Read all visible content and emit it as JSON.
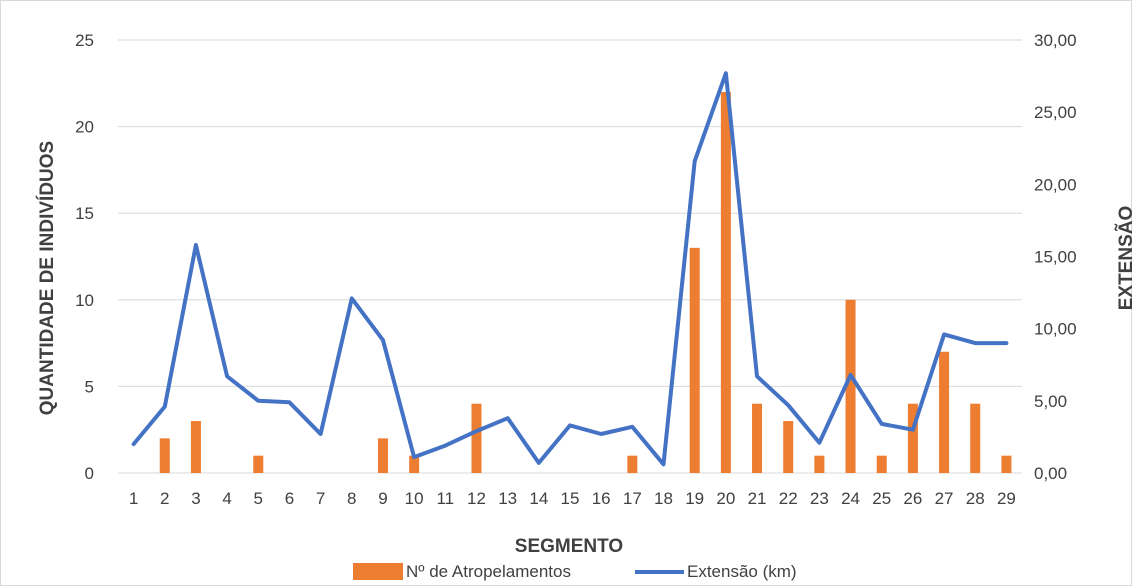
{
  "chart_data": {
    "type": "bar+line",
    "title": "",
    "xlabel": "SEGMENTO",
    "ylabel_left": "QUANTIDADE DE INDIVÍDUOS",
    "ylabel_right": "EXTENSÃO",
    "categories": [
      "1",
      "2",
      "3",
      "4",
      "5",
      "6",
      "7",
      "8",
      "9",
      "10",
      "11",
      "12",
      "13",
      "14",
      "15",
      "16",
      "17",
      "18",
      "19",
      "20",
      "21",
      "22",
      "23",
      "24",
      "25",
      "26",
      "27",
      "28",
      "29"
    ],
    "y_left_ticks": [
      "0",
      "5",
      "10",
      "15",
      "20",
      "25"
    ],
    "y_left_lim": [
      0,
      25
    ],
    "y_right_ticks": [
      "0,00",
      "5,00",
      "10,00",
      "15,00",
      "20,00",
      "25,00",
      "30,00"
    ],
    "y_right_lim": [
      0,
      30
    ],
    "grid": true,
    "legend_position": "bottom",
    "series": [
      {
        "name": "Nº de Atropelamentos",
        "type": "bar",
        "axis": "left",
        "color": "#ED7D31",
        "values": [
          0,
          2,
          3,
          0,
          1,
          0,
          0,
          0,
          2,
          1,
          0,
          4,
          0,
          0,
          0,
          0,
          1,
          0,
          13,
          22,
          4,
          3,
          1,
          10,
          1,
          4,
          7,
          4,
          1
        ]
      },
      {
        "name": "Extensão (km)",
        "type": "line",
        "axis": "right",
        "color": "#4472C4",
        "values": [
          2.0,
          4.6,
          15.8,
          6.7,
          5.0,
          4.9,
          2.7,
          12.1,
          9.2,
          1.1,
          1.9,
          2.9,
          3.8,
          0.7,
          3.3,
          2.7,
          3.2,
          0.6,
          21.6,
          27.7,
          6.7,
          4.7,
          2.1,
          6.8,
          3.4,
          3.0,
          9.6,
          9.0,
          9.0
        ]
      }
    ]
  }
}
